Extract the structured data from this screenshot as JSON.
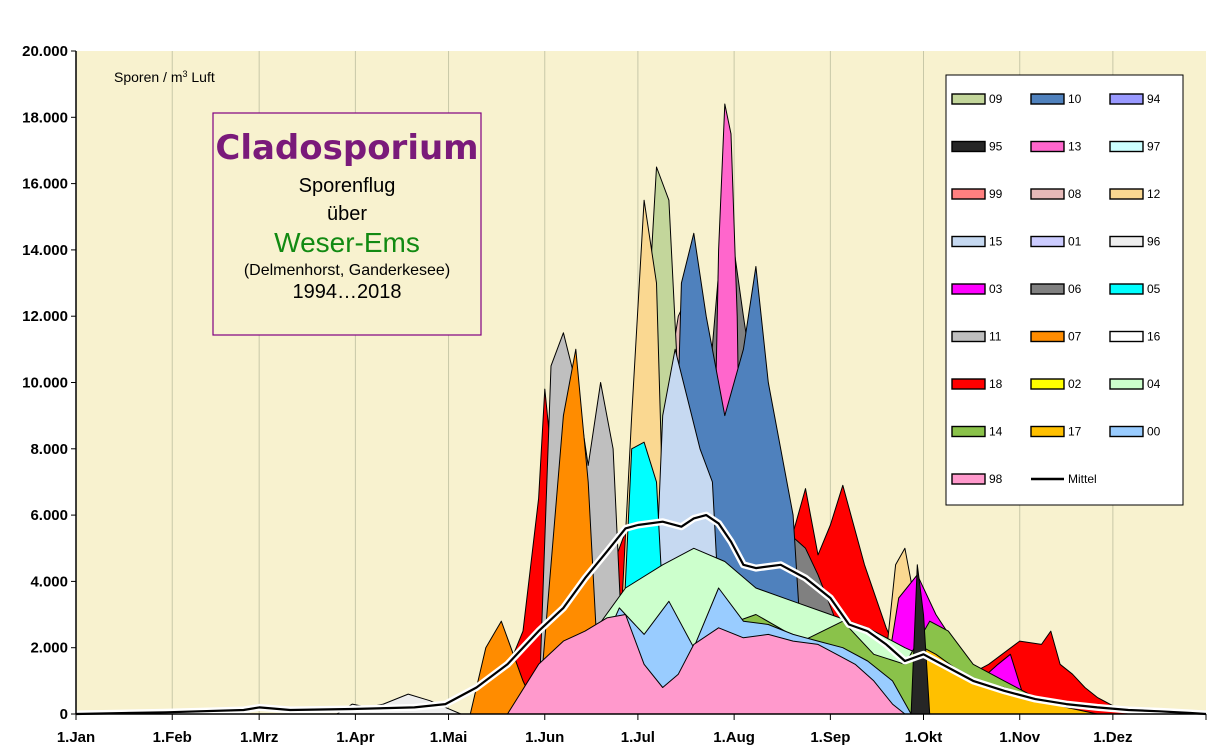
{
  "chart_data": {
    "type": "area",
    "title": "Cladosporium",
    "subtitle_lines": [
      "Sporenflug",
      "über"
    ],
    "region": "Weser-Ems",
    "location": "(Delmenhorst,  Ganderkesee)",
    "years": "1994…2018",
    "unit_label": "Sporen / m³ Luft",
    "ylim": [
      0,
      20000
    ],
    "y_ticks": [
      "0",
      "2.000",
      "4.000",
      "6.000",
      "8.000",
      "10.000",
      "12.000",
      "14.000",
      "16.000",
      "18.000",
      "20.000"
    ],
    "y_tick_values": [
      0,
      2000,
      4000,
      6000,
      8000,
      10000,
      12000,
      14000,
      16000,
      18000,
      20000
    ],
    "x_ticks": [
      "1.Jan",
      "1.Feb",
      "1.Mrz",
      "1.Apr",
      "1.Mai",
      "1.Jun",
      "1.Jul",
      "1.Aug",
      "1.Sep",
      "1.Okt",
      "1.Nov",
      "1.Dez"
    ],
    "x_tick_days": [
      1,
      32,
      60,
      91,
      121,
      152,
      182,
      213,
      244,
      274,
      305,
      335
    ],
    "xlim": [
      1,
      365
    ],
    "grid": "vertical",
    "legend_position": "top-right",
    "legend": [
      {
        "label": "09",
        "color": "#c3d69b"
      },
      {
        "label": "10",
        "color": "#4f81bd"
      },
      {
        "label": "94",
        "color": "#9999ff"
      },
      {
        "label": "95",
        "color": "#262626"
      },
      {
        "label": "13",
        "color": "#ff66cc"
      },
      {
        "label": "97",
        "color": "#ccffff"
      },
      {
        "label": "99",
        "color": "#ff8080"
      },
      {
        "label": "08",
        "color": "#e6b9b8"
      },
      {
        "label": "12",
        "color": "#fad891"
      },
      {
        "label": "15",
        "color": "#c6d9f1"
      },
      {
        "label": "01",
        "color": "#ccccff"
      },
      {
        "label": "96",
        "color": "#eeeeee"
      },
      {
        "label": "03",
        "color": "#ff00ff"
      },
      {
        "label": "06",
        "color": "#808080"
      },
      {
        "label": "05",
        "color": "#00ffff"
      },
      {
        "label": "11",
        "color": "#bfbfbf"
      },
      {
        "label": "07",
        "color": "#ff8c00"
      },
      {
        "label": "16",
        "color": "#ffffff"
      },
      {
        "label": "18",
        "color": "#ff0000"
      },
      {
        "label": "02",
        "color": "#ffff00"
      },
      {
        "label": "04",
        "color": "#ccffcc"
      },
      {
        "label": "14",
        "color": "#8ac24a"
      },
      {
        "label": "17",
        "color": "#ffc000"
      },
      {
        "label": "00",
        "color": "#99ccff"
      },
      {
        "label": "98",
        "color": "#ff99cc"
      },
      {
        "label": "Mittel",
        "color": "#000000"
      }
    ],
    "series": [
      {
        "name": "18",
        "color": "#ff0000",
        "x": [
          130,
          138,
          145,
          150,
          152,
          155,
          158,
          165,
          172,
          180,
          190,
          200,
          208,
          215,
          222,
          230,
          236,
          240,
          244,
          248,
          255,
          262,
          268,
          275,
          285,
          295,
          305,
          312,
          315,
          318,
          322,
          326,
          330,
          340
        ],
        "values": [
          0,
          900,
          2500,
          6500,
          9800,
          7000,
          5000,
          5500,
          4000,
          6000,
          5200,
          5800,
          6500,
          4500,
          5200,
          4800,
          6800,
          4800,
          5700,
          6900,
          4500,
          2600,
          1300,
          900,
          1000,
          1500,
          2200,
          2100,
          2500,
          1500,
          1200,
          800,
          500,
          0
        ]
      },
      {
        "name": "06",
        "color": "#808080",
        "x": [
          190,
          195,
          200,
          205,
          210,
          213,
          216,
          220,
          225,
          230,
          236,
          240,
          245,
          250
        ],
        "values": [
          0,
          4000,
          6500,
          10000,
          15500,
          14000,
          12000,
          9500,
          7500,
          5500,
          5000,
          4200,
          3000,
          0
        ]
      },
      {
        "name": "08",
        "color": "#e6b9b8",
        "x": [
          185,
          190,
          195,
          200,
          205,
          210
        ],
        "values": [
          0,
          9000,
          12000,
          13000,
          11000,
          0
        ]
      },
      {
        "name": "09",
        "color": "#c3d69b",
        "x": [
          180,
          184,
          188,
          192,
          196,
          200
        ],
        "values": [
          0,
          10000,
          16500,
          15500,
          8000,
          0
        ]
      },
      {
        "name": "13",
        "color": "#ff66cc",
        "x": [
          205,
          208,
          210,
          212,
          214,
          216
        ],
        "values": [
          0,
          14000,
          18400,
          17500,
          12000,
          0
        ]
      },
      {
        "name": "12",
        "color": "#fad891",
        "x": [
          175,
          180,
          184,
          188,
          192,
          260,
          265,
          268,
          272,
          275
        ],
        "values": [
          0,
          9000,
          15500,
          13000,
          0,
          0,
          4500,
          5000,
          3000,
          0
        ]
      },
      {
        "name": "10",
        "color": "#4f81bd",
        "x": [
          192,
          196,
          200,
          204,
          210,
          216,
          220,
          224,
          228,
          232,
          236
        ],
        "values": [
          0,
          13000,
          14500,
          12000,
          9000,
          11000,
          13500,
          10000,
          8000,
          6000,
          0
        ]
      },
      {
        "name": "15",
        "color": "#c6d9f1",
        "x": [
          186,
          190,
          194,
          198,
          202,
          206,
          210
        ],
        "values": [
          0,
          9000,
          11000,
          9500,
          8000,
          7000,
          0
        ]
      },
      {
        "name": "11",
        "color": "#bfbfbf",
        "x": [
          150,
          154,
          158,
          162,
          166,
          170,
          174,
          178
        ],
        "values": [
          0,
          10500,
          11500,
          10000,
          7500,
          10000,
          8000,
          0
        ]
      },
      {
        "name": "07",
        "color": "#ff8c00",
        "x": [
          128,
          133,
          138,
          145,
          150,
          158,
          162,
          166,
          170
        ],
        "values": [
          0,
          2000,
          2800,
          1000,
          0,
          9000,
          11000,
          7000,
          0
        ]
      },
      {
        "name": "05",
        "color": "#00ffff",
        "x": [
          176,
          180,
          184,
          188,
          192
        ],
        "values": [
          0,
          8000,
          8200,
          7000,
          0
        ]
      },
      {
        "name": "03",
        "color": "#ff00ff",
        "x": [
          260,
          266,
          272,
          278,
          285,
          292,
          298,
          302,
          308
        ],
        "values": [
          0,
          3500,
          4200,
          3000,
          2000,
          1000,
          1500,
          1800,
          0
        ]
      },
      {
        "name": "04",
        "color": "#ccffcc",
        "x": [
          160,
          168,
          178,
          190,
          200,
          210,
          220,
          232,
          244,
          256,
          268,
          280,
          292,
          300
        ],
        "values": [
          0,
          2500,
          3800,
          4500,
          5000,
          4600,
          3800,
          3400,
          3000,
          2600,
          2000,
          1500,
          1000,
          0
        ]
      },
      {
        "name": "14",
        "color": "#8ac24a",
        "x": [
          190,
          205,
          220,
          235,
          248,
          258,
          268,
          276,
          282,
          290,
          300,
          310,
          320
        ],
        "values": [
          0,
          2500,
          3000,
          2200,
          2800,
          1800,
          1500,
          2800,
          2500,
          1500,
          1000,
          500,
          0
        ]
      },
      {
        "name": "17",
        "color": "#ffc000",
        "x": [
          270,
          274,
          278,
          284,
          292,
          300,
          310,
          320,
          330
        ],
        "values": [
          0,
          2000,
          1800,
          1400,
          1000,
          800,
          500,
          200,
          0
        ]
      },
      {
        "name": "00",
        "color": "#99ccff",
        "x": [
          160,
          168,
          176,
          184,
          192,
          200,
          208,
          216,
          224,
          232,
          240,
          248,
          256,
          264,
          270
        ],
        "values": [
          0,
          1500,
          3200,
          2400,
          3400,
          2000,
          3800,
          2800,
          2700,
          2400,
          2200,
          2000,
          1600,
          1000,
          0
        ]
      },
      {
        "name": "98",
        "color": "#ff99cc",
        "x": [
          140,
          150,
          158,
          165,
          172,
          178,
          184,
          190,
          195,
          200,
          208,
          216,
          224,
          232,
          240,
          246,
          252,
          258,
          264,
          268
        ],
        "values": [
          0,
          1500,
          2200,
          2500,
          2900,
          3000,
          1500,
          800,
          1200,
          2100,
          2600,
          2300,
          2400,
          2200,
          2100,
          1800,
          1500,
          1000,
          300,
          0
        ]
      },
      {
        "name": "96",
        "color": "#eeeeee",
        "x": [
          85,
          90,
          95,
          100,
          108,
          115,
          120,
          125
        ],
        "values": [
          0,
          300,
          200,
          300,
          600,
          400,
          200,
          0
        ]
      },
      {
        "name": "95",
        "color": "#262626",
        "x": [
          270,
          272,
          274,
          276
        ],
        "values": [
          0,
          4500,
          3000,
          0
        ]
      }
    ],
    "mean": {
      "name": "Mittel",
      "color": "#000000",
      "x": [
        1,
        30,
        55,
        60,
        70,
        90,
        110,
        120,
        130,
        140,
        150,
        158,
        165,
        172,
        178,
        182,
        190,
        196,
        200,
        204,
        208,
        212,
        216,
        220,
        228,
        236,
        244,
        250,
        256,
        262,
        268,
        274,
        282,
        290,
        300,
        310,
        320,
        330,
        340,
        350,
        360,
        365
      ],
      "values": [
        0,
        50,
        120,
        200,
        120,
        150,
        200,
        300,
        800,
        1500,
        2500,
        3200,
        4100,
        4900,
        5600,
        5700,
        5800,
        5650,
        5900,
        6000,
        5750,
        5200,
        4500,
        4400,
        4500,
        4100,
        3500,
        2700,
        2500,
        2100,
        1600,
        1800,
        1400,
        1000,
        700,
        450,
        300,
        200,
        120,
        80,
        30,
        0
      ]
    }
  },
  "legend_title": "",
  "unit_label_parts": {
    "prefix": "Sporen / m",
    "sup": "3",
    "suffix": " Luft"
  }
}
